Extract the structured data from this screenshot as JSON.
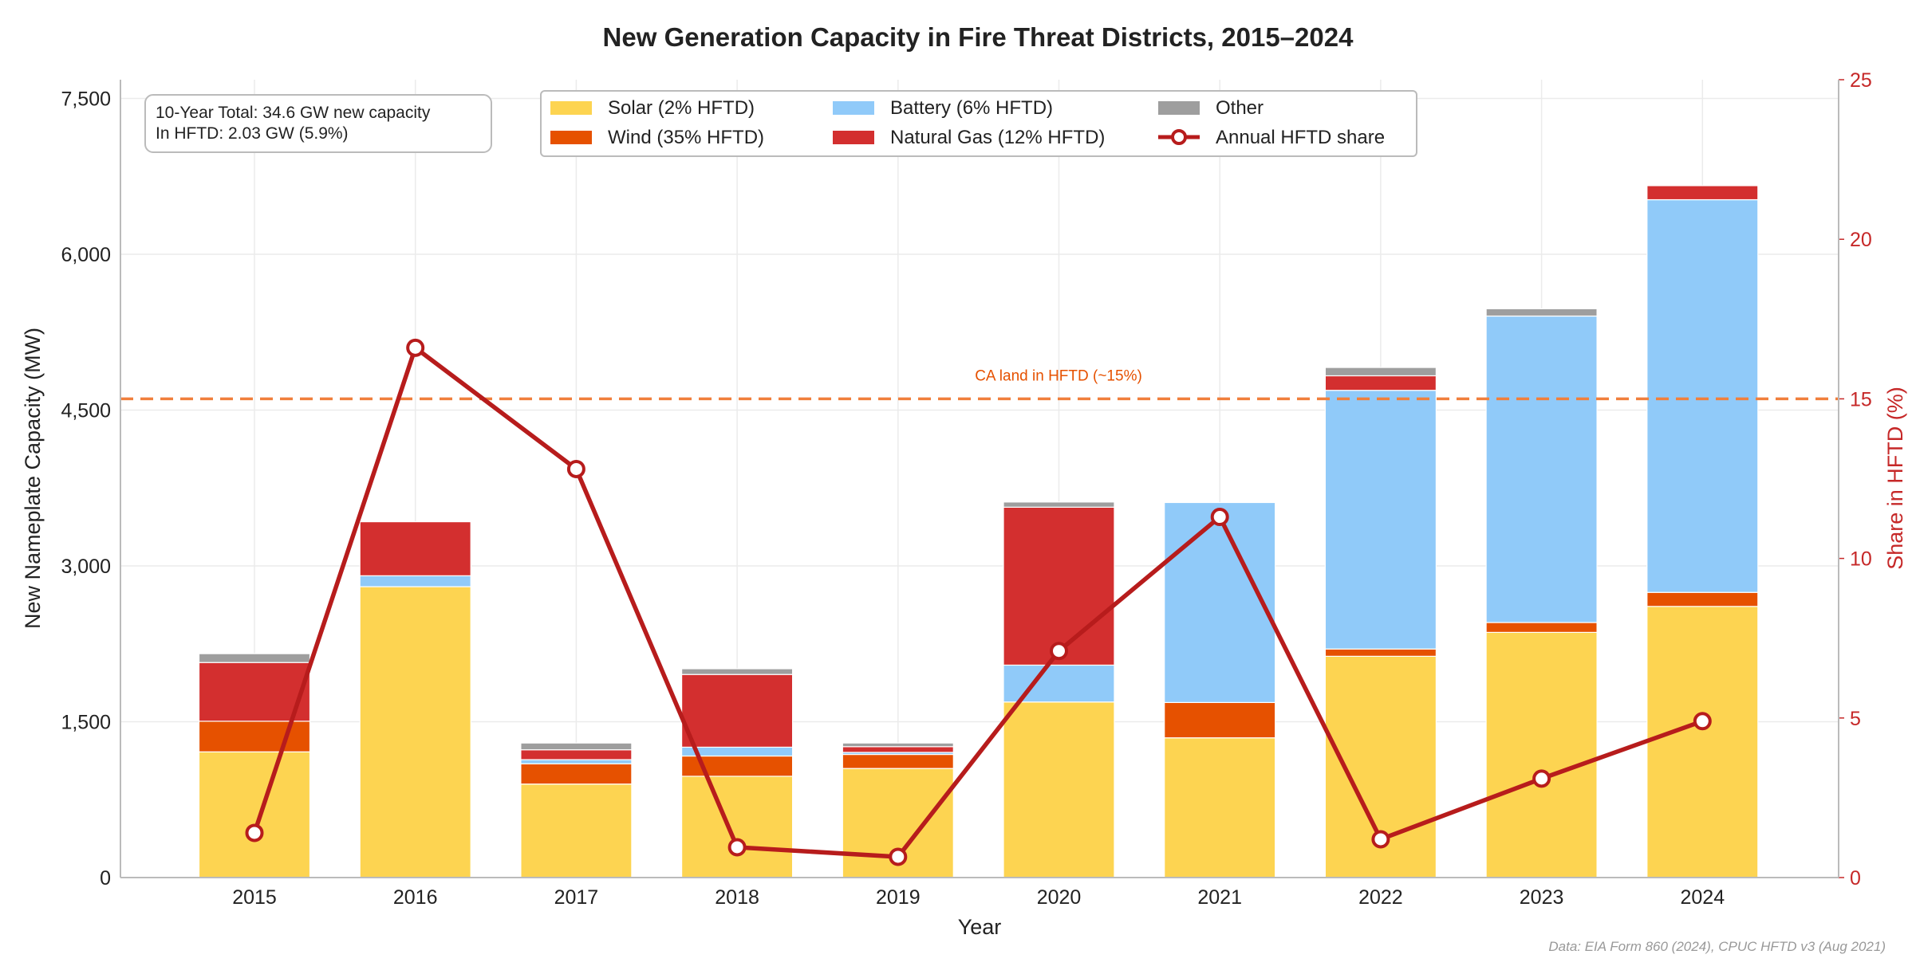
{
  "chart_data": {
    "type": "bar",
    "stacked": true,
    "title": "New Generation Capacity in Fire Threat Districts, 2015–2024",
    "xlabel": "Year",
    "ylabel": "New Nameplate Capacity (MW)",
    "ylabel_right": "Share in HFTD (%)",
    "categories": [
      "2015",
      "2016",
      "2017",
      "2018",
      "2019",
      "2020",
      "2021",
      "2022",
      "2023",
      "2024"
    ],
    "ylim": [
      0,
      7680
    ],
    "yticks": [
      0,
      1500,
      3000,
      4500,
      6000,
      7500
    ],
    "ytick_labels": [
      "0",
      "1,500",
      "3,000",
      "4,500",
      "6,000",
      "7,500"
    ],
    "ylim_right": [
      0,
      25
    ],
    "yticks_right": [
      0,
      5,
      10,
      15,
      20,
      25
    ],
    "ytick_labels_right": [
      "0",
      "5",
      "10",
      "15",
      "20",
      "25"
    ],
    "grid": true,
    "legend_placement": "top-center",
    "series": [
      {
        "name": "Solar (2% HFTD)",
        "color": "#FDD451",
        "values": [
          1210,
          2800,
          900,
          975,
          1050,
          1690,
          1345,
          2130,
          2360,
          2610
        ]
      },
      {
        "name": "Wind (35% HFTD)",
        "color": "#E65100",
        "values": [
          295,
          0,
          195,
          195,
          135,
          0,
          340,
          70,
          95,
          135
        ]
      },
      {
        "name": "Battery (6% HFTD)",
        "color": "#90CAF9",
        "values": [
          0,
          105,
          40,
          85,
          20,
          355,
          1925,
          2490,
          2950,
          3780
        ]
      },
      {
        "name": "Natural Gas (12% HFTD)",
        "color": "#D32F2F",
        "values": [
          565,
          520,
          95,
          700,
          55,
          1520,
          0,
          140,
          0,
          135
        ]
      },
      {
        "name": "Other",
        "color": "#9E9E9E",
        "values": [
          85,
          0,
          65,
          55,
          35,
          50,
          0,
          80,
          70,
          0
        ]
      }
    ],
    "line_series": {
      "name": "Annual HFTD share",
      "color": "#B71C1C",
      "axis": "right",
      "values": [
        1.4,
        16.6,
        12.8,
        0.95,
        0.65,
        7.1,
        11.3,
        1.2,
        3.1,
        4.9
      ]
    },
    "reference_line": {
      "label": "CA land in HFTD (~15%)",
      "value": 15,
      "axis": "right",
      "color": "#F07F3C",
      "style": "dashed"
    },
    "annotation": {
      "line1": "10-Year Total: 34.6 GW new capacity",
      "line2": "In HFTD: 2.03 GW (5.9%)"
    },
    "source_note": "Data: EIA Form 860 (2024), CPUC HFTD v3 (Aug 2021)"
  }
}
